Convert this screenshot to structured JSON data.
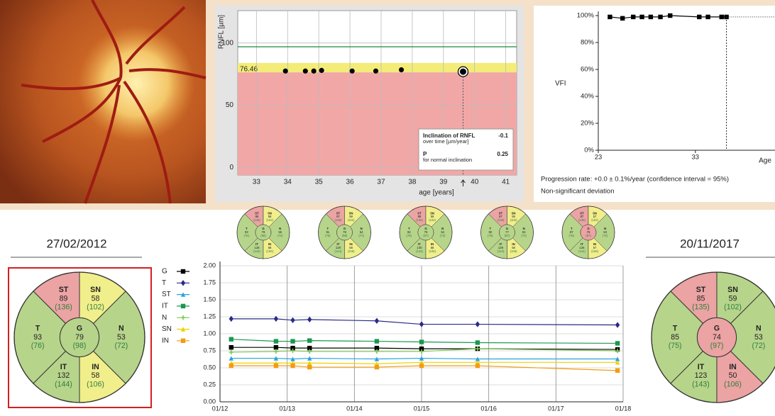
{
  "chart_data": [
    {
      "type": "scatter",
      "ylabel": "RNFL [µm]",
      "xlabel": "age [years]",
      "x": [
        33.93,
        34.57,
        34.84,
        35.09,
        36.07,
        36.83,
        37.65,
        39.63
      ],
      "values": [
        77.5,
        77.5,
        77.5,
        78,
        77.5,
        77.5,
        78.5,
        77
      ],
      "color": "#000000",
      "xlim": [
        32.4,
        41.35
      ],
      "xticks": [
        33,
        34,
        35,
        36,
        37,
        38,
        39,
        40,
        41
      ],
      "ylim": [
        -6,
        126
      ],
      "yticks": [
        0,
        50,
        100
      ],
      "grid": true,
      "threshold": 76.46,
      "band_top": 84,
      "reference": 97,
      "reference_color": "#1a8a3a",
      "below_color": "#f2a7a7",
      "band_color": "#f3ec78",
      "inclination_label": "Inclination of RNFL",
      "inclination_unit": "over time [µm/year]",
      "inclination": -0.1,
      "p_label": "P",
      "p_note": "for normal inclination",
      "p": 0.25
    },
    {
      "type": "line",
      "ylabel": "VFI",
      "xlabel": "Age",
      "x": [
        24.2,
        25.5,
        26.6,
        27.5,
        28.4,
        29.4,
        30.4,
        33.4,
        34.3,
        35.7,
        36.2
      ],
      "values": [
        99,
        98,
        99,
        99,
        99,
        99,
        100,
        99,
        99,
        99,
        99
      ],
      "color": "#000000",
      "xlim": [
        23,
        41.2
      ],
      "xticks": [
        23,
        33
      ],
      "ylim": [
        0,
        100
      ],
      "yticks": [
        {
          "value": 0,
          "label": "0%"
        },
        {
          "value": 20,
          "label": "20%"
        },
        {
          "value": 40,
          "label": "40%"
        },
        {
          "value": 60,
          "label": "60%"
        },
        {
          "value": 80,
          "label": "80%"
        },
        {
          "value": 100,
          "label": "100%"
        }
      ],
      "notes": [
        "Progression rate: +0.0 ± 0.1%/year (confidence interval = 95%)",
        "Non-significant deviation"
      ]
    },
    {
      "type": "line",
      "x": [
        "03/12",
        "11/12",
        "02/13",
        "05/13",
        "05/14",
        "01/15",
        "11/15",
        "12/17"
      ],
      "xlim": [
        "01/12",
        "01/18"
      ],
      "xticks": [
        "01/12",
        "01/13",
        "01/14",
        "01/15",
        "01/16",
        "01/17",
        "01/18"
      ],
      "ylim": [
        0,
        2
      ],
      "yticks": [
        {
          "value": 0,
          "label": "0.00"
        },
        0.25,
        {
          "value": 0.5,
          "label": "0.50"
        },
        0.75,
        {
          "value": 1,
          "label": "1.00"
        },
        1.25,
        {
          "value": 1.5,
          "label": "1.50"
        },
        1.75,
        {
          "value": 2,
          "label": "2.00"
        }
      ],
      "grid": true,
      "series": [
        {
          "name": "G",
          "color": "#000000",
          "marker": "square",
          "values": [
            0.8,
            0.8,
            0.79,
            0.79,
            0.79,
            0.78,
            0.78,
            0.77
          ]
        },
        {
          "name": "T",
          "color": "#2a2a8a",
          "marker": "diamond",
          "values": [
            1.22,
            1.22,
            1.2,
            1.21,
            1.19,
            1.14,
            1.14,
            1.13
          ]
        },
        {
          "name": "ST",
          "color": "#29a3e0",
          "marker": "triangle",
          "values": [
            0.64,
            0.64,
            0.63,
            0.64,
            0.63,
            0.64,
            0.63,
            0.63
          ]
        },
        {
          "name": "IT",
          "color": "#1a9850",
          "marker": "square",
          "values": [
            0.92,
            0.89,
            0.89,
            0.9,
            0.89,
            0.88,
            0.87,
            0.86
          ]
        },
        {
          "name": "N",
          "color": "#7ec850",
          "marker": "plus",
          "values": [
            0.73,
            0.74,
            0.75,
            0.74,
            0.74,
            0.74,
            0.78,
            0.75
          ]
        },
        {
          "name": "SN",
          "color": "#f0d000",
          "marker": "triangle",
          "values": [
            0.57,
            0.57,
            0.57,
            0.57,
            0.56,
            0.58,
            0.58,
            0.58
          ]
        },
        {
          "name": "IN",
          "color": "#f39c12",
          "marker": "square",
          "values": [
            0.53,
            0.53,
            0.53,
            0.51,
            0.51,
            0.53,
            0.53,
            0.46
          ]
        }
      ]
    }
  ],
  "sector_maps": {
    "baseline": {
      "date": "27/02/2012",
      "sectors": [
        {
          "name": "ST",
          "value": 89,
          "reference": "(136)",
          "color": "#eba3a3"
        },
        {
          "name": "SN",
          "value": 58,
          "reference": "(102)",
          "color": "#f1ee8c"
        },
        {
          "name": "T",
          "value": 93,
          "reference": "(76)",
          "color": "#b7d48b"
        },
        {
          "name": "G",
          "value": 79,
          "reference": "(98)",
          "color": "#b7d48b"
        },
        {
          "name": "N",
          "value": 53,
          "reference": "(72)",
          "color": "#b7d48b"
        },
        {
          "name": "IT",
          "value": 132,
          "reference": "(144)",
          "color": "#b7d48b"
        },
        {
          "name": "IN",
          "value": 58,
          "reference": "(106)",
          "color": "#f1ee8c"
        }
      ]
    },
    "latest": {
      "date": "20/11/2017",
      "sectors": [
        {
          "name": "ST",
          "value": 85,
          "reference": "(135)",
          "color": "#eba3a3"
        },
        {
          "name": "SN",
          "value": 59,
          "reference": "(102)",
          "color": "#b7d48b"
        },
        {
          "name": "T",
          "value": 85,
          "reference": "(75)",
          "color": "#b7d48b"
        },
        {
          "name": "G",
          "value": 74,
          "reference": "(97)",
          "color": "#eba3a3"
        },
        {
          "name": "N",
          "value": 53,
          "reference": "(72)",
          "color": "#b7d48b"
        },
        {
          "name": "IT",
          "value": 123,
          "reference": "(143)",
          "color": "#b7d48b"
        },
        {
          "name": "IN",
          "value": 50,
          "reference": "(106)",
          "color": "#eba3a3"
        }
      ]
    },
    "timeline": [
      {
        "sectors": [
          {
            "name": "ST",
            "value": 89,
            "reference": "(136)",
            "color": "#eba3a3"
          },
          {
            "name": "SN",
            "value": 58,
            "reference": "(102)",
            "color": "#f1ee8c"
          },
          {
            "name": "T",
            "value": 93,
            "reference": "(75)",
            "color": "#b7d48b"
          },
          {
            "name": "G",
            "value": 79,
            "reference": "(98)",
            "color": "#b7d48b"
          },
          {
            "name": "N",
            "value": 55,
            "reference": "(72)",
            "color": "#b7d48b"
          },
          {
            "name": "IT",
            "value": 128,
            "reference": "(144)",
            "color": "#b7d48b"
          },
          {
            "name": "IN",
            "value": 58,
            "reference": "(106)",
            "color": "#f1ee8c"
          }
        ]
      },
      {
        "sectors": [
          {
            "name": "ST",
            "value": 87,
            "reference": "(135)",
            "color": "#eba3a3"
          },
          {
            "name": "SN",
            "value": 59,
            "reference": "(102)",
            "color": "#f1ee8c"
          },
          {
            "name": "T",
            "value": 91,
            "reference": "(75)",
            "color": "#b7d48b"
          },
          {
            "name": "G",
            "value": 78,
            "reference": "(98)",
            "color": "#b7d48b"
          },
          {
            "name": "N",
            "value": 54,
            "reference": "(72)",
            "color": "#b7d48b"
          },
          {
            "name": "IT",
            "value": 129,
            "reference": "(144)",
            "color": "#b7d48b"
          },
          {
            "name": "IN",
            "value": 58,
            "reference": "(106)",
            "color": "#f1ee8c"
          }
        ]
      },
      {
        "sectors": [
          {
            "name": "ST",
            "value": 88,
            "reference": "(135)",
            "color": "#eba3a3"
          },
          {
            "name": "SN",
            "value": 59,
            "reference": "(102)",
            "color": "#f1ee8c"
          },
          {
            "name": "T",
            "value": 92,
            "reference": "(75)",
            "color": "#b7d48b"
          },
          {
            "name": "G",
            "value": 78,
            "reference": "(97)",
            "color": "#b7d48b"
          },
          {
            "name": "N",
            "value": 54,
            "reference": "(72)",
            "color": "#b7d48b"
          },
          {
            "name": "IT",
            "value": 130,
            "reference": "(144)",
            "color": "#b7d48b"
          },
          {
            "name": "IN",
            "value": 58,
            "reference": "(106)",
            "color": "#f1ee8c"
          }
        ]
      },
      {
        "sectors": [
          {
            "name": "ST",
            "value": 87,
            "reference": "(135)",
            "color": "#eba3a3"
          },
          {
            "name": "SN",
            "value": 59,
            "reference": "(102)",
            "color": "#f1ee8c"
          },
          {
            "name": "T",
            "value": 90,
            "reference": "(75)",
            "color": "#b7d48b"
          },
          {
            "name": "G",
            "value": 77,
            "reference": "(97)",
            "color": "#b7d48b"
          },
          {
            "name": "N",
            "value": 53,
            "reference": "(72)",
            "color": "#b7d48b"
          },
          {
            "name": "IT",
            "value": 129,
            "reference": "(144)",
            "color": "#b7d48b"
          },
          {
            "name": "IN",
            "value": 58,
            "reference": "(106)",
            "color": "#f1ee8c"
          }
        ]
      },
      {
        "sectors": [
          {
            "name": "ST",
            "value": 87,
            "reference": "(135)",
            "color": "#eba3a3"
          },
          {
            "name": "SN",
            "value": 57,
            "reference": "(102)",
            "color": "#f1ee8c"
          },
          {
            "name": "T",
            "value": 87,
            "reference": "(75)",
            "color": "#b7d48b"
          },
          {
            "name": "G",
            "value": 76,
            "reference": "(97)",
            "color": "#eba3a3"
          },
          {
            "name": "N",
            "value": 53,
            "reference": "(72)",
            "color": "#b7d48b"
          },
          {
            "name": "IT",
            "value": 126,
            "reference": "(144)",
            "color": "#b7d48b"
          },
          {
            "name": "IN",
            "value": 57,
            "reference": "(106)",
            "color": "#f1ee8c"
          }
        ]
      }
    ]
  }
}
